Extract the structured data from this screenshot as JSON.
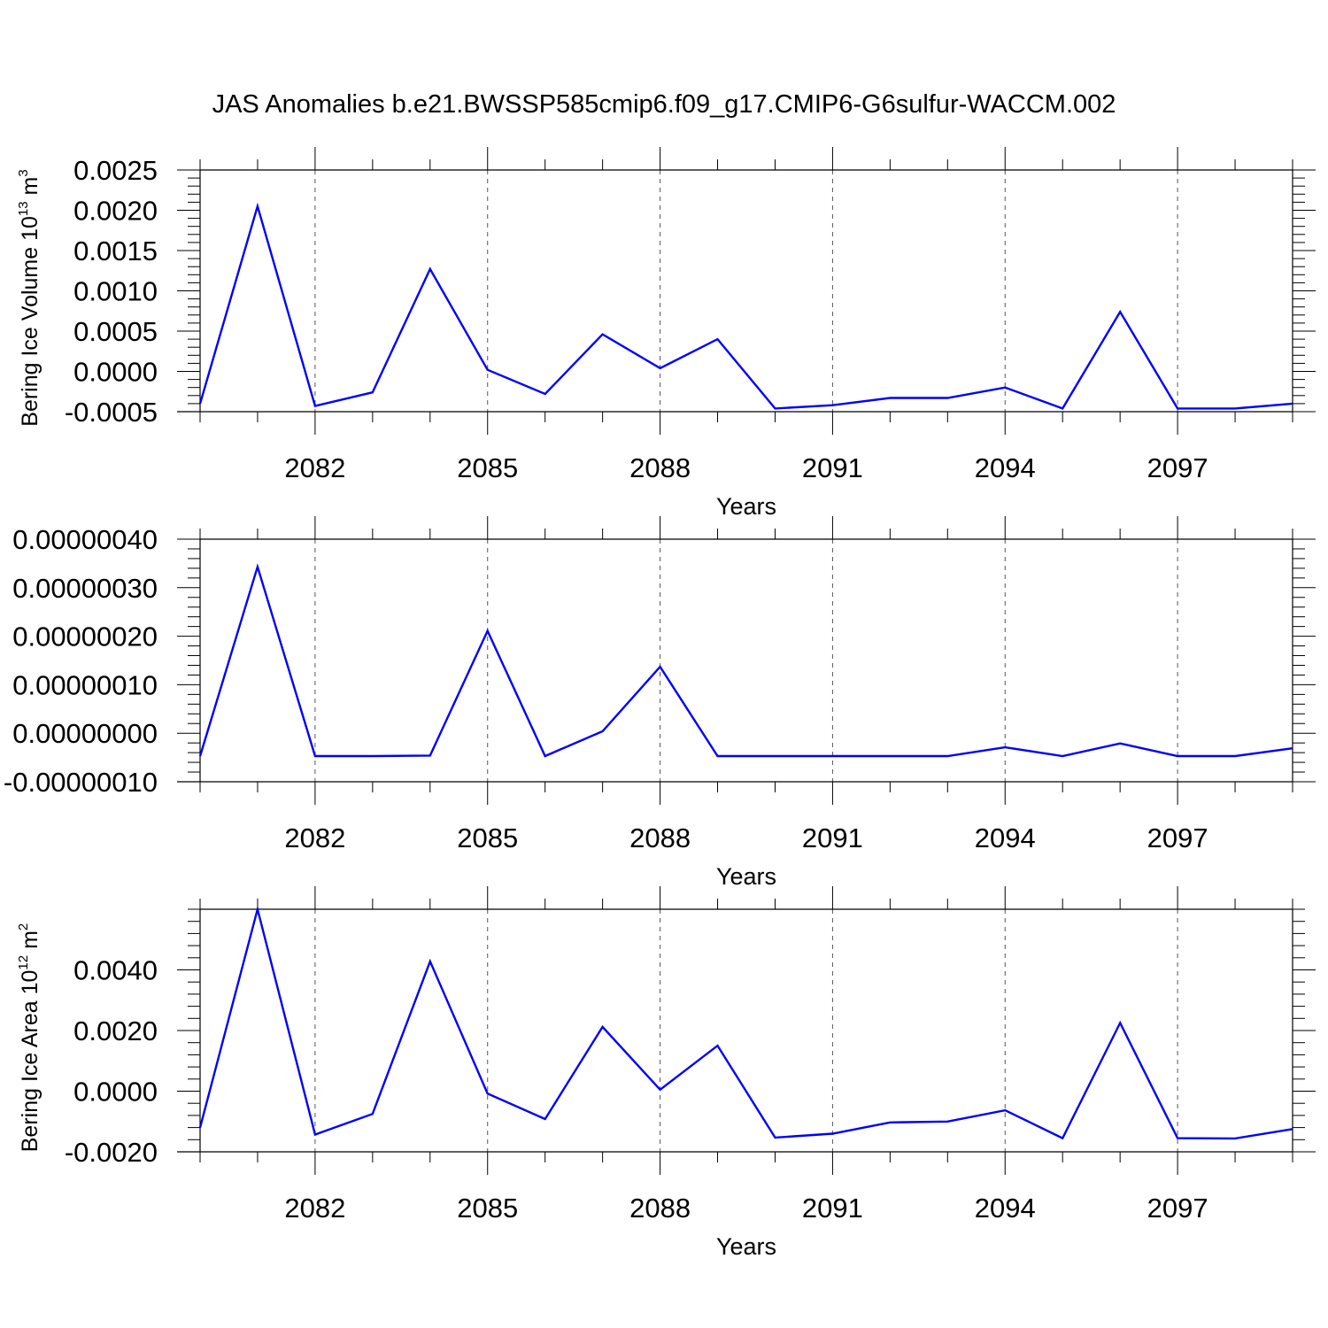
{
  "figure_title": "JAS Anomalies b.e21.BWSSP585cmip6.f09_g17.CMIP6-G6sulfur-WACCM.002",
  "colors": {
    "line": "#0000ff",
    "axis": "#000000",
    "grid": "#555555"
  },
  "chart_data": [
    {
      "type": "line",
      "title": "JAS Anomalies b.e21.BWSSP585cmip6.f09_g17.CMIP6-G6sulfur-WACCM.002",
      "xlabel": "Years",
      "ylabel": "Bering Ice Volume 10^13 m^3",
      "ylabel_parts": [
        "Bering Ice Volume 10",
        "13",
        " m",
        "3"
      ],
      "xlim": [
        2080,
        2099
      ],
      "ylim": [
        -0.0005,
        0.0025
      ],
      "xticks": [
        2082,
        2085,
        2088,
        2091,
        2094,
        2097
      ],
      "yticks": [
        -0.0005,
        0.0,
        0.0005,
        0.001,
        0.0015,
        0.002,
        0.0025
      ],
      "ytick_labels": [
        "-0.0005",
        "0.0000",
        "0.0005",
        "0.0010",
        "0.0015",
        "0.0020",
        "0.0025"
      ],
      "x_grid": "dashed vertical at major ticks",
      "series": [
        {
          "x": [
            2080,
            2081,
            2082,
            2083,
            2084,
            2085,
            2086,
            2087,
            2088,
            2089,
            2090,
            2091,
            2092,
            2093,
            2094,
            2095,
            2096,
            2097,
            2098,
            2099
          ],
          "values": [
            -0.0004,
            0.00205,
            -0.00043,
            -0.00026,
            0.00127,
            2e-05,
            -0.00028,
            0.00046,
            4e-05,
            0.0004,
            -0.00046,
            -0.00042,
            -0.00033,
            -0.00033,
            -0.0002,
            -0.00046,
            0.00074,
            -0.00046,
            -0.00046,
            -0.0004
          ]
        }
      ]
    },
    {
      "type": "line",
      "xlabel": "Years",
      "ylabel": "",
      "xlim": [
        2080,
        2099
      ],
      "ylim": [
        -1e-07,
        4e-07
      ],
      "xticks": [
        2082,
        2085,
        2088,
        2091,
        2094,
        2097
      ],
      "yticks": [
        -1e-07,
        0.0,
        1e-07,
        2e-07,
        3e-07,
        4e-07
      ],
      "ytick_labels": [
        "-0.00000010",
        "0.00000000",
        "0.00000010",
        "0.00000020",
        "0.00000030",
        "0.00000040"
      ],
      "x_grid": "dashed vertical at major ticks",
      "series": [
        {
          "x": [
            2080,
            2081,
            2082,
            2083,
            2084,
            2085,
            2086,
            2087,
            2088,
            2089,
            2090,
            2091,
            2092,
            2093,
            2094,
            2095,
            2096,
            2097,
            2098,
            2099
          ],
          "values": [
            -4.7e-08,
            3.43e-07,
            -4.7e-08,
            -4.7e-08,
            -4.6e-08,
            2.11e-07,
            -4.7e-08,
            4e-09,
            1.37e-07,
            -4.7e-08,
            -4.7e-08,
            -4.7e-08,
            -4.7e-08,
            -4.7e-08,
            -2.9e-08,
            -4.7e-08,
            -2.1e-08,
            -4.7e-08,
            -4.7e-08,
            -3.1e-08
          ]
        }
      ]
    },
    {
      "type": "line",
      "xlabel": "Years",
      "ylabel": "Bering Ice Area 10^12 m^2",
      "ylabel_parts": [
        "Bering Ice Area 10",
        "12",
        " m",
        "2"
      ],
      "xlim": [
        2080,
        2099
      ],
      "ylim": [
        -0.002,
        0.006
      ],
      "xticks": [
        2082,
        2085,
        2088,
        2091,
        2094,
        2097
      ],
      "yticks": [
        -0.002,
        0.0,
        0.002,
        0.004
      ],
      "ytick_labels": [
        "-0.0020",
        "0.0000",
        "0.0020",
        "0.0040"
      ],
      "x_grid": "dashed vertical at major ticks",
      "series": [
        {
          "x": [
            2080,
            2081,
            2082,
            2083,
            2084,
            2085,
            2086,
            2087,
            2088,
            2089,
            2090,
            2091,
            2092,
            2093,
            2094,
            2095,
            2096,
            2097,
            2098,
            2099
          ],
          "values": [
            -0.0012,
            0.006,
            -0.00143,
            -0.00075,
            0.00428,
            -8e-05,
            -0.00092,
            0.00212,
            5e-05,
            0.0015,
            -0.00153,
            -0.0014,
            -0.00103,
            -0.001,
            -0.00063,
            -0.00155,
            0.00225,
            -0.00155,
            -0.00156,
            -0.00125
          ]
        }
      ]
    }
  ]
}
